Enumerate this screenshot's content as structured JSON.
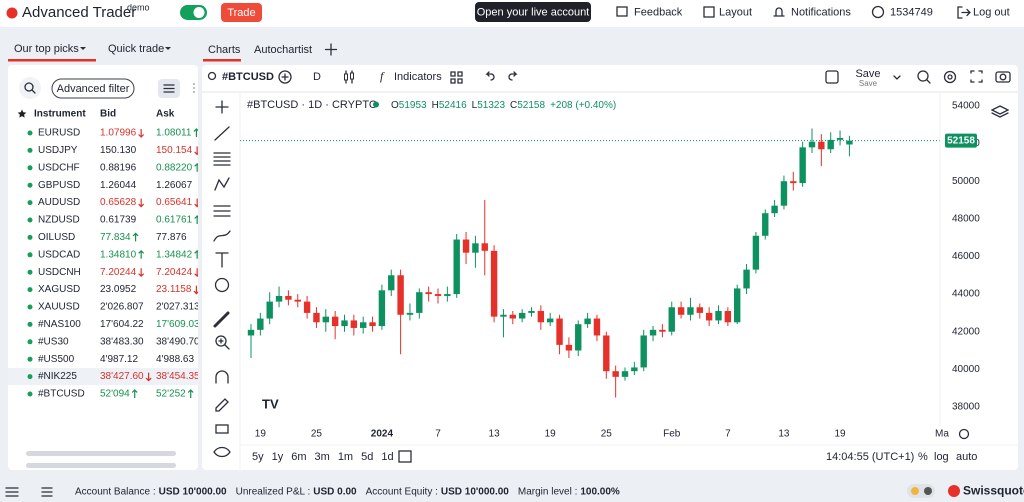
{
  "ui": {
    "topbar": {
      "brand": "Advanced Trader",
      "badge": "demo",
      "trade": "Trade",
      "live_account": "Open your live account",
      "menu": [
        "Feedback",
        "Layout",
        "Notifications",
        "1534749",
        "Log out"
      ]
    },
    "tabs": {
      "left": [
        "Our top picks",
        "Quick trade"
      ],
      "right": [
        "Charts",
        "Autochartist"
      ]
    },
    "watchlist": {
      "filter": "Advanced filter",
      "columns": [
        "Instrument",
        "Bid",
        "Ask"
      ],
      "selected": 14,
      "rows": [
        {
          "symbol": "EURUSD",
          "bid": "1.07996",
          "bid_trend": "down",
          "ask": "1.08011",
          "ask_trend": "up"
        },
        {
          "symbol": "USDJPY",
          "bid": "150.130",
          "bid_trend": null,
          "ask": "150.154",
          "ask_trend": "down"
        },
        {
          "symbol": "USDCHF",
          "bid": "0.88196",
          "bid_trend": null,
          "ask": "0.88220",
          "ask_trend": "up"
        },
        {
          "symbol": "GBPUSD",
          "bid": "1.26044",
          "bid_trend": null,
          "ask": "1.26067",
          "ask_trend": null
        },
        {
          "symbol": "AUDUSD",
          "bid": "0.65628",
          "bid_trend": "down",
          "ask": "0.65641",
          "ask_trend": "down"
        },
        {
          "symbol": "NZDUSD",
          "bid": "0.61739",
          "bid_trend": null,
          "ask": "0.61761",
          "ask_trend": "up"
        },
        {
          "symbol": "OILUSD",
          "bid": "77.834",
          "bid_trend": "up",
          "ask": "77.876",
          "ask_trend": null
        },
        {
          "symbol": "USDCAD",
          "bid": "1.34810",
          "bid_trend": "up",
          "ask": "1.34842",
          "ask_trend": "up"
        },
        {
          "symbol": "USDCNH",
          "bid": "7.20244",
          "bid_trend": "down",
          "ask": "7.20424",
          "ask_trend": "down"
        },
        {
          "symbol": "XAGUSD",
          "bid": "23.0952",
          "bid_trend": null,
          "ask": "23.1158",
          "ask_trend": "down"
        },
        {
          "symbol": "XAUUSD",
          "bid": "2'026.807",
          "bid_trend": null,
          "ask": "2'027.313",
          "ask_trend": null
        },
        {
          "symbol": "#NAS100",
          "bid": "17'604.22",
          "bid_trend": null,
          "ask": "17'609.03",
          "ask_trend": "up"
        },
        {
          "symbol": "#US30",
          "bid": "38'483.30",
          "bid_trend": null,
          "ask": "38'490.70",
          "ask_trend": null
        },
        {
          "symbol": "#US500",
          "bid": "4'987.12",
          "bid_trend": null,
          "ask": "4'988.63",
          "ask_trend": null
        },
        {
          "symbol": "#NIK225",
          "bid": "38'427.60",
          "bid_trend": "down",
          "ask": "38'454.35",
          "ask_trend": "down"
        },
        {
          "symbol": "#BTCUSD",
          "bid": "52'094",
          "bid_trend": "up",
          "ask": "52'252",
          "ask_trend": "up"
        }
      ]
    },
    "chart_toolbar": {
      "symbol": "#BTCUSD",
      "interval": "D",
      "indicators": "Indicators",
      "save": "Save",
      "save_hint": "Save"
    },
    "chart_footer": {
      "ranges": [
        "5y",
        "1y",
        "6m",
        "3m",
        "1m",
        "5d",
        "1d"
      ],
      "time": "14:04:55 (UTC+1)",
      "percent": "%",
      "log": "log",
      "auto": "auto"
    },
    "status": {
      "items": [
        {
          "label": "Account Balance :",
          "value": "USD 10'000.00"
        },
        {
          "label": "Unrealized P&L :",
          "value": "USD 0.00"
        },
        {
          "label": "Account Equity :",
          "value": "USD 10'000.00"
        },
        {
          "label": "Margin level :",
          "value": "100.00%"
        }
      ],
      "brand": "Swissquote"
    }
  },
  "chart_data": {
    "type": "candlestick",
    "title": "#BTCUSD · 1D · CRYPTO",
    "ohlc_labels": [
      "O",
      "H",
      "L",
      "C"
    ],
    "change_label": "+208 (+0.40%)",
    "up_color": "#0e9160",
    "down_color": "#e5312a",
    "grid": false,
    "categories": [
      null,
      "19",
      null,
      null,
      null,
      null,
      null,
      "25",
      null,
      null,
      null,
      null,
      null,
      null,
      "2024",
      null,
      null,
      null,
      null,
      null,
      "7",
      null,
      null,
      null,
      null,
      null,
      "13",
      null,
      null,
      null,
      null,
      null,
      "19",
      null,
      null,
      null,
      null,
      null,
      "25",
      null,
      null,
      null,
      null,
      null,
      null,
      "Feb",
      null,
      null,
      null,
      null,
      null,
      "7",
      null,
      null,
      null,
      null,
      null,
      "13",
      null,
      null,
      null,
      null,
      null,
      "19",
      null
    ],
    "x_edge_label": "Ma",
    "open": [
      41800,
      42100,
      42700,
      43600,
      43900,
      43700,
      43600,
      43000,
      42500,
      42800,
      42300,
      42600,
      42200,
      42500,
      42300,
      44200,
      45000,
      42900,
      43000,
      44100,
      44000,
      43900,
      44000,
      46900,
      46200,
      46700,
      46300,
      42800,
      42900,
      42700,
      43000,
      43100,
      42500,
      42700,
      41300,
      41000,
      42400,
      42700,
      41800,
      39900,
      39600,
      39900,
      40100,
      41800,
      42100,
      42000,
      43300,
      42900,
      43300,
      43000,
      42600,
      43100,
      42500,
      44300,
      45300,
      47100,
      48300,
      48700,
      50000,
      49900,
      51800,
      52100,
      51700,
      52200,
      51953
    ],
    "high": [
      42400,
      43000,
      44100,
      44400,
      44200,
      44000,
      43900,
      43300,
      43200,
      43100,
      42900,
      42900,
      42800,
      42800,
      44500,
      45300,
      45300,
      43500,
      44300,
      44400,
      44300,
      44400,
      47200,
      47300,
      47100,
      49000,
      46600,
      43200,
      43100,
      43200,
      43300,
      43400,
      43000,
      42900,
      41700,
      42600,
      43000,
      42900,
      42000,
      40200,
      40100,
      40400,
      42100,
      42300,
      42400,
      43600,
      43600,
      43800,
      43500,
      43300,
      43400,
      43300,
      44500,
      45600,
      47300,
      48500,
      49000,
      50300,
      50500,
      52100,
      52800,
      52500,
      52600,
      52700,
      52416
    ],
    "low": [
      40600,
      41800,
      42400,
      43300,
      43400,
      43300,
      42700,
      42200,
      42000,
      41600,
      42000,
      41800,
      41900,
      42000,
      42100,
      43900,
      40800,
      42600,
      42700,
      43600,
      43500,
      43600,
      43800,
      45600,
      45400,
      45000,
      42500,
      41700,
      42400,
      42500,
      42800,
      42100,
      42300,
      40800,
      40600,
      40700,
      42200,
      41500,
      39500,
      38500,
      39400,
      39700,
      39900,
      41500,
      41700,
      41800,
      42700,
      42600,
      42700,
      42300,
      42400,
      42300,
      42400,
      44000,
      45100,
      46900,
      48100,
      48500,
      49500,
      49700,
      51500,
      50800,
      51500,
      51900,
      51323
    ],
    "close": [
      42100,
      42700,
      43600,
      43900,
      43700,
      43600,
      43000,
      42500,
      42800,
      42300,
      42600,
      42200,
      42500,
      42300,
      44200,
      45000,
      42900,
      43000,
      44100,
      44000,
      43900,
      44000,
      46900,
      46200,
      46700,
      46300,
      42800,
      42900,
      42700,
      43000,
      43100,
      42500,
      42700,
      41300,
      41000,
      42400,
      42700,
      41800,
      39900,
      39600,
      39900,
      40100,
      41800,
      42100,
      42000,
      43300,
      42900,
      43300,
      43000,
      42600,
      43100,
      42500,
      44300,
      45300,
      47100,
      48300,
      48700,
      50000,
      49900,
      51800,
      52100,
      51700,
      52200,
      52300,
      52158
    ],
    "ylim": [
      37040,
      54690
    ],
    "yticks": [
      38000,
      40000,
      42000,
      44000,
      46000,
      48000,
      50000,
      52000,
      54000
    ]
  }
}
